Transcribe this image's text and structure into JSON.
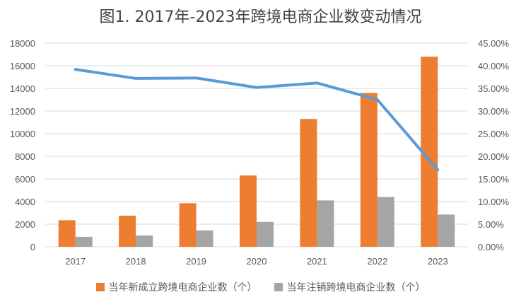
{
  "chart_data": {
    "type": "bar",
    "title": "图1. 2017年-2023年跨境电商企业数变动情况",
    "categories": [
      "2017",
      "2018",
      "2019",
      "2020",
      "2021",
      "2022",
      "2023"
    ],
    "series": [
      {
        "name": "当年新成立跨境电商企业数（个）",
        "type": "bar",
        "axis": "left",
        "color": "#ED7D31",
        "values": [
          2350,
          2750,
          3850,
          6300,
          11300,
          13600,
          16800
        ]
      },
      {
        "name": "当年注销跨境电商企业数（个）",
        "type": "bar",
        "axis": "left",
        "color": "#A5A5A5",
        "values": [
          880,
          1000,
          1450,
          2200,
          4100,
          4400,
          2850
        ]
      },
      {
        "type": "line",
        "axis": "right",
        "color": "#5B9BD5",
        "values": [
          39.2,
          37.2,
          37.3,
          35.2,
          36.2,
          32.5,
          17.0
        ]
      }
    ],
    "left_axis": {
      "ylim": [
        0,
        18000
      ],
      "ticks": [
        "0",
        "2000",
        "4000",
        "6000",
        "8000",
        "10000",
        "12000",
        "14000",
        "16000",
        "18000"
      ]
    },
    "right_axis": {
      "ylim": [
        0,
        45
      ],
      "ticks": [
        "0.00%",
        "5.00%",
        "10.00%",
        "15.00%",
        "20.00%",
        "25.00%",
        "30.00%",
        "35.00%",
        "40.00%",
        "45.00%"
      ]
    },
    "grid": true,
    "legend_position": "bottom"
  }
}
